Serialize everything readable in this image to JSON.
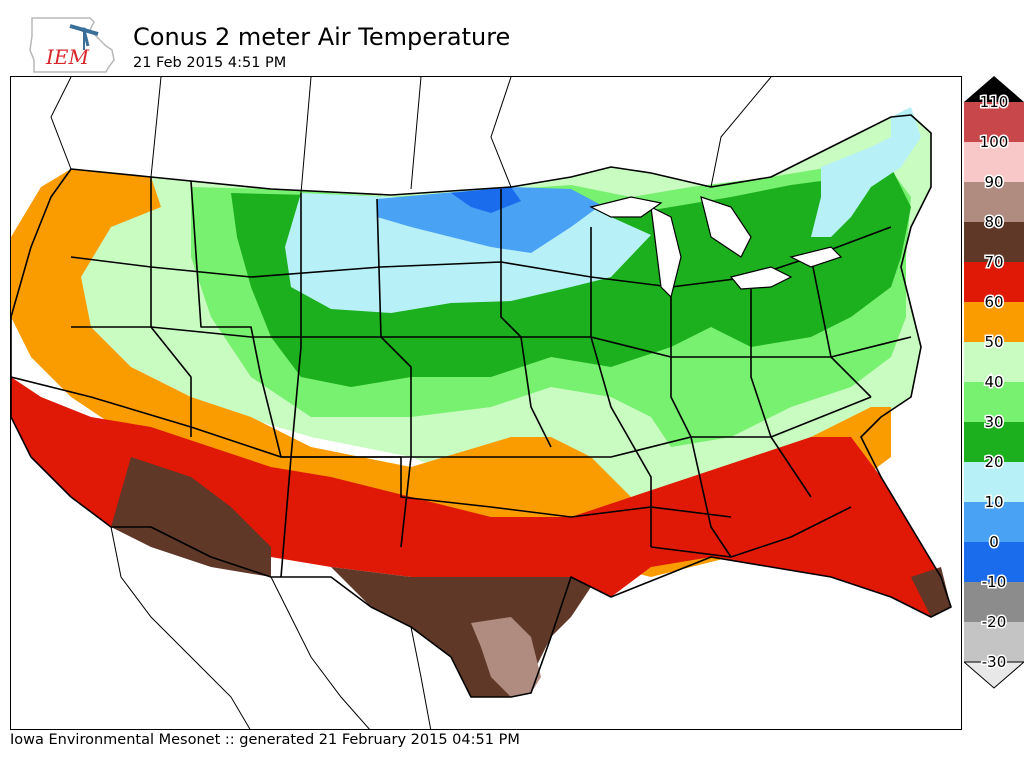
{
  "header": {
    "title": "Conus 2 meter Air Temperature",
    "subtitle": "21 Feb 2015 4:51 PM",
    "logo_text": "IEM"
  },
  "footer": {
    "credit": "Iowa Environmental Mesonet :: generated 21 February 2015 04:51 PM"
  },
  "legend": {
    "levels": [
      {
        "label": "110",
        "color": "#c8474a"
      },
      {
        "label": "100",
        "color": "#c8474a"
      },
      {
        "label": "90",
        "color": "#f8c8c8"
      },
      {
        "label": "80",
        "color": "#b08c80"
      },
      {
        "label": "70",
        "color": "#603828"
      },
      {
        "label": "60",
        "color": "#e01806"
      },
      {
        "label": "50",
        "color": "#fa9c00"
      },
      {
        "label": "40",
        "color": "#c8fcc0"
      },
      {
        "label": "30",
        "color": "#78f070"
      },
      {
        "label": "20",
        "color": "#1cb01e"
      },
      {
        "label": "10",
        "color": "#b8f0f8"
      },
      {
        "label": "0",
        "color": "#4aa2f4"
      },
      {
        "label": "-10",
        "color": "#1a6cec"
      },
      {
        "label": "-20",
        "color": "#8c8c8c"
      },
      {
        "label": "-30",
        "color": "#c4c4c4"
      }
    ],
    "top_extension_color": "#000000",
    "bottom_extension_color": "#e8e8e8"
  },
  "map": {
    "background_color": "#ffffff",
    "bands": [
      {
        "name": "40 to 50",
        "color": "#c8fcc0"
      },
      {
        "name": "30 to 40",
        "color": "#78f070"
      },
      {
        "name": "20 to 30",
        "color": "#1cb01e"
      },
      {
        "name": "10 to 20",
        "color": "#b8f0f8"
      },
      {
        "name": "0 to 10",
        "color": "#4aa2f4"
      },
      {
        "name": "-10 to 0",
        "color": "#1a6cec"
      },
      {
        "name": "50 to 60",
        "color": "#fa9c00"
      },
      {
        "name": "60 to 70",
        "color": "#e01806"
      },
      {
        "name": "70 to 80",
        "color": "#603828"
      },
      {
        "name": "80 to 90",
        "color": "#b08c80"
      }
    ]
  }
}
